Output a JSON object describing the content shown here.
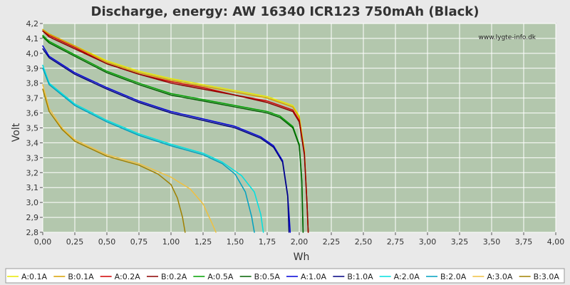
{
  "chart_data": {
    "type": "line",
    "title": "Discharge, energy: AW 16340 ICR123 750mAh (Black)",
    "xlabel": "Wh",
    "ylabel": "Volt",
    "watermark": "www.lygte-info.dk",
    "xlim": [
      0,
      4.0
    ],
    "ylim": [
      2.8,
      4.2
    ],
    "x_ticks": [
      "0,00",
      "0,25",
      "0,50",
      "0,75",
      "1,00",
      "1,25",
      "1,50",
      "1,75",
      "2,00",
      "2,25",
      "2,50",
      "2,75",
      "3,00",
      "3,25",
      "3,50",
      "3,75",
      "4,00"
    ],
    "y_ticks": [
      "2,8",
      "2,9",
      "3,0",
      "3,1",
      "3,2",
      "3,3",
      "3,4",
      "3,5",
      "3,6",
      "3,7",
      "3,8",
      "3,9",
      "4,0",
      "4,1",
      "4,2"
    ],
    "grid": true,
    "legend_position": "bottom",
    "background_color": "#b3c7ad",
    "series": [
      {
        "name": "A:0.1A",
        "color": "#e8e800",
        "points": [
          [
            0,
            4.16
          ],
          [
            0.05,
            4.13
          ],
          [
            0.25,
            4.05
          ],
          [
            0.5,
            3.95
          ],
          [
            0.75,
            3.88
          ],
          [
            1.0,
            3.83
          ],
          [
            1.25,
            3.79
          ],
          [
            1.5,
            3.75
          ],
          [
            1.75,
            3.71
          ],
          [
            1.95,
            3.65
          ],
          [
            2.0,
            3.58
          ],
          [
            2.04,
            3.35
          ],
          [
            2.06,
            3.0
          ],
          [
            2.07,
            2.8
          ]
        ]
      },
      {
        "name": "B:0.1A",
        "color": "#d8a000",
        "points": [
          [
            0,
            4.16
          ],
          [
            0.05,
            4.13
          ],
          [
            0.25,
            4.05
          ],
          [
            0.5,
            3.94
          ],
          [
            0.75,
            3.87
          ],
          [
            1.0,
            3.82
          ],
          [
            1.25,
            3.78
          ],
          [
            1.5,
            3.74
          ],
          [
            1.75,
            3.7
          ],
          [
            1.95,
            3.64
          ],
          [
            2.0,
            3.57
          ],
          [
            2.04,
            3.34
          ],
          [
            2.06,
            3.0
          ],
          [
            2.07,
            2.8
          ]
        ]
      },
      {
        "name": "A:0.2A",
        "color": "#d00000",
        "points": [
          [
            0,
            4.15
          ],
          [
            0.05,
            4.12
          ],
          [
            0.25,
            4.04
          ],
          [
            0.5,
            3.93
          ],
          [
            0.75,
            3.86
          ],
          [
            1.0,
            3.81
          ],
          [
            1.25,
            3.77
          ],
          [
            1.5,
            3.72
          ],
          [
            1.75,
            3.68
          ],
          [
            1.95,
            3.62
          ],
          [
            2.0,
            3.55
          ],
          [
            2.04,
            3.33
          ],
          [
            2.06,
            3.0
          ],
          [
            2.07,
            2.8
          ]
        ]
      },
      {
        "name": "B:0.2A",
        "color": "#8c0000",
        "points": [
          [
            0,
            4.15
          ],
          [
            0.05,
            4.11
          ],
          [
            0.25,
            4.03
          ],
          [
            0.5,
            3.93
          ],
          [
            0.75,
            3.86
          ],
          [
            1.0,
            3.8
          ],
          [
            1.25,
            3.76
          ],
          [
            1.5,
            3.72
          ],
          [
            1.75,
            3.67
          ],
          [
            1.95,
            3.61
          ],
          [
            2.0,
            3.54
          ],
          [
            2.04,
            3.32
          ],
          [
            2.06,
            3.0
          ],
          [
            2.07,
            2.8
          ]
        ]
      },
      {
        "name": "A:0.5A",
        "color": "#00a000",
        "points": [
          [
            0,
            4.12
          ],
          [
            0.05,
            4.08
          ],
          [
            0.25,
            3.99
          ],
          [
            0.5,
            3.88
          ],
          [
            0.75,
            3.8
          ],
          [
            1.0,
            3.73
          ],
          [
            1.25,
            3.69
          ],
          [
            1.5,
            3.65
          ],
          [
            1.75,
            3.61
          ],
          [
            1.85,
            3.58
          ],
          [
            1.95,
            3.51
          ],
          [
            2.0,
            3.39
          ],
          [
            2.02,
            3.15
          ],
          [
            2.03,
            2.8
          ]
        ]
      },
      {
        "name": "B:0.5A",
        "color": "#006000",
        "points": [
          [
            0,
            4.11
          ],
          [
            0.05,
            4.07
          ],
          [
            0.25,
            3.98
          ],
          [
            0.5,
            3.87
          ],
          [
            0.75,
            3.79
          ],
          [
            1.0,
            3.72
          ],
          [
            1.25,
            3.68
          ],
          [
            1.5,
            3.64
          ],
          [
            1.75,
            3.6
          ],
          [
            1.85,
            3.57
          ],
          [
            1.95,
            3.5
          ],
          [
            2.0,
            3.38
          ],
          [
            2.02,
            3.14
          ],
          [
            2.03,
            2.8
          ]
        ]
      },
      {
        "name": "A:1.0A",
        "color": "#0000d8",
        "points": [
          [
            0,
            4.05
          ],
          [
            0.05,
            3.98
          ],
          [
            0.25,
            3.87
          ],
          [
            0.5,
            3.77
          ],
          [
            0.75,
            3.68
          ],
          [
            1.0,
            3.61
          ],
          [
            1.25,
            3.56
          ],
          [
            1.5,
            3.51
          ],
          [
            1.7,
            3.44
          ],
          [
            1.8,
            3.38
          ],
          [
            1.87,
            3.28
          ],
          [
            1.91,
            3.05
          ],
          [
            1.93,
            2.8
          ]
        ]
      },
      {
        "name": "B:1.0A",
        "color": "#000080",
        "points": [
          [
            0,
            4.03
          ],
          [
            0.05,
            3.97
          ],
          [
            0.25,
            3.86
          ],
          [
            0.5,
            3.76
          ],
          [
            0.75,
            3.67
          ],
          [
            1.0,
            3.6
          ],
          [
            1.25,
            3.55
          ],
          [
            1.5,
            3.5
          ],
          [
            1.7,
            3.43
          ],
          [
            1.8,
            3.37
          ],
          [
            1.87,
            3.27
          ],
          [
            1.91,
            3.04
          ],
          [
            1.92,
            2.8
          ]
        ]
      },
      {
        "name": "A:2.0A",
        "color": "#00e0e0",
        "points": [
          [
            0,
            3.92
          ],
          [
            0.05,
            3.8
          ],
          [
            0.25,
            3.66
          ],
          [
            0.5,
            3.55
          ],
          [
            0.75,
            3.46
          ],
          [
            1.0,
            3.39
          ],
          [
            1.25,
            3.33
          ],
          [
            1.4,
            3.27
          ],
          [
            1.55,
            3.18
          ],
          [
            1.65,
            3.07
          ],
          [
            1.7,
            2.92
          ],
          [
            1.72,
            2.8
          ]
        ]
      },
      {
        "name": "B:2.0A",
        "color": "#00a0c0",
        "points": [
          [
            0,
            3.9
          ],
          [
            0.05,
            3.79
          ],
          [
            0.25,
            3.65
          ],
          [
            0.5,
            3.54
          ],
          [
            0.75,
            3.45
          ],
          [
            1.0,
            3.38
          ],
          [
            1.25,
            3.32
          ],
          [
            1.4,
            3.26
          ],
          [
            1.5,
            3.19
          ],
          [
            1.58,
            3.07
          ],
          [
            1.63,
            2.9
          ],
          [
            1.65,
            2.8
          ]
        ]
      },
      {
        "name": "A:3.0A",
        "color": "#f0c040",
        "points": [
          [
            0,
            3.79
          ],
          [
            0.05,
            3.63
          ],
          [
            0.15,
            3.5
          ],
          [
            0.25,
            3.42
          ],
          [
            0.5,
            3.32
          ],
          [
            0.75,
            3.26
          ],
          [
            1.0,
            3.17
          ],
          [
            1.15,
            3.09
          ],
          [
            1.25,
            2.99
          ],
          [
            1.32,
            2.86
          ],
          [
            1.35,
            2.8
          ]
        ]
      },
      {
        "name": "B:3.0A",
        "color": "#a08000",
        "points": [
          [
            0,
            3.76
          ],
          [
            0.05,
            3.61
          ],
          [
            0.15,
            3.49
          ],
          [
            0.25,
            3.41
          ],
          [
            0.5,
            3.31
          ],
          [
            0.75,
            3.25
          ],
          [
            0.9,
            3.19
          ],
          [
            1.0,
            3.12
          ],
          [
            1.05,
            3.03
          ],
          [
            1.09,
            2.9
          ],
          [
            1.11,
            2.8
          ]
        ]
      }
    ]
  }
}
